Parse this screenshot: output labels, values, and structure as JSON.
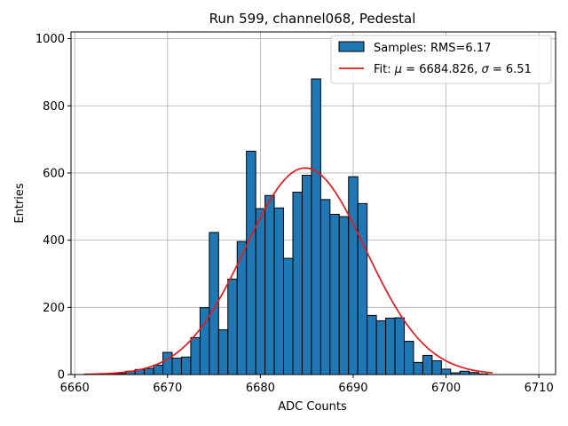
{
  "chart_data": {
    "type": "bar",
    "title": "Run 599, channel068, Pedestal",
    "xlabel": "ADC Counts",
    "ylabel": "Entries",
    "xlim": [
      6659.6,
      6711.8
    ],
    "ylim": [
      0,
      1020
    ],
    "xticks": [
      6660,
      6670,
      6680,
      6690,
      6700,
      6710
    ],
    "yticks": [
      0,
      200,
      400,
      600,
      800,
      1000
    ],
    "grid": true,
    "legend_position": "top-right",
    "histogram": {
      "name": "Samples: RMS=6.17",
      "color": "#1f77b4",
      "bin_width": 1,
      "x": [
        6663,
        6664,
        6665,
        6666,
        6667,
        6668,
        6669,
        6670,
        6671,
        6672,
        6673,
        6674,
        6675,
        6676,
        6677,
        6678,
        6679,
        6680,
        6681,
        6682,
        6683,
        6684,
        6685,
        6686,
        6687,
        6688,
        6689,
        6690,
        6691,
        6692,
        6693,
        6694,
        6695,
        6696,
        6697,
        6698,
        6699,
        6700,
        6701,
        6702,
        6703,
        6704
      ],
      "values": [
        1,
        2,
        3,
        10,
        15,
        18,
        28,
        66,
        49,
        52,
        110,
        199,
        423,
        133,
        284,
        396,
        665,
        494,
        533,
        496,
        346,
        543,
        593,
        880,
        521,
        477,
        470,
        589,
        509,
        176,
        160,
        168,
        169,
        99,
        36,
        57,
        41,
        16,
        5,
        10,
        6,
        2
      ]
    },
    "fit": {
      "name_prefix": "Fit: ",
      "name_mu": "μ",
      "name_mid": " = 6684.826, ",
      "name_sigma": "σ",
      "name_suffix": " = 6.51",
      "color": "#e41a1c",
      "mu": 6684.826,
      "sigma": 6.51,
      "amplitude": 615,
      "x_range": [
        6661,
        6705
      ]
    }
  }
}
